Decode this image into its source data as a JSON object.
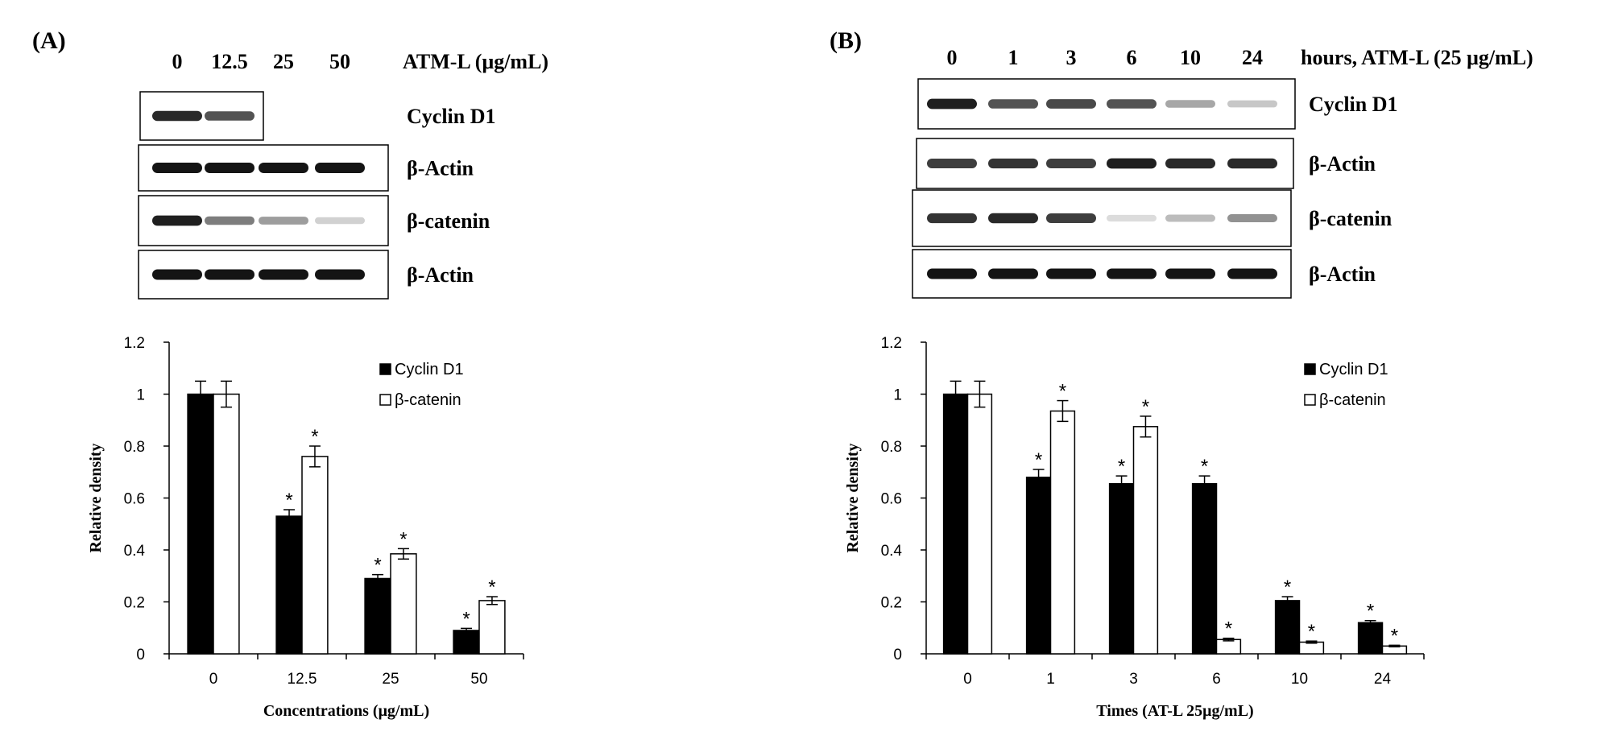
{
  "panels": [
    {
      "label": "(A)",
      "blot": {
        "lane_labels": [
          "0",
          "12.5",
          "25",
          "50"
        ],
        "treatment_label": "ATM-L (μg/mL)",
        "rows": [
          {
            "name": "Cyclin D1",
            "intensity": [
              0.9,
              0.7,
              0,
              0
            ]
          },
          {
            "name": "β-Actin",
            "intensity": [
              1,
              1,
              1,
              1
            ]
          },
          {
            "name": "β-catenin",
            "intensity": [
              0.95,
              0.5,
              0.35,
              0.1
            ]
          },
          {
            "name": "β-Actin",
            "intensity": [
              1,
              1,
              1,
              1
            ]
          }
        ]
      },
      "chart_data": {
        "type": "bar",
        "categories": [
          "0",
          "12.5",
          "25",
          "50"
        ],
        "series": [
          {
            "name": "Cyclin D1",
            "color": "#000000",
            "values": [
              1.0,
              0.53,
              0.29,
              0.09
            ],
            "errors": [
              0.05,
              0.025,
              0.015,
              0.008
            ],
            "significant": [
              false,
              true,
              true,
              true
            ]
          },
          {
            "name": "β-catenin",
            "color": "#ffffff",
            "values": [
              1.0,
              0.76,
              0.385,
              0.205
            ],
            "errors": [
              0.05,
              0.04,
              0.02,
              0.015
            ],
            "significant": [
              false,
              true,
              true,
              true
            ]
          }
        ],
        "significance_marker": "*",
        "yticks": [
          "0",
          "0.2",
          "0.4",
          "0.6",
          "0.8",
          "1",
          "1.2"
        ],
        "ylim": [
          0,
          1.2
        ],
        "ylabel": "Relative density",
        "xlabel": "Concentrations  (μg/mL)",
        "legend_position": "top-right"
      }
    },
    {
      "label": "(B)",
      "blot": {
        "lane_labels": [
          "0",
          "1",
          "3",
          "6",
          "10",
          "24"
        ],
        "treatment_label": "hours,  ATM-L (25 μg/mL)",
        "rows": [
          {
            "name": "Cyclin D1",
            "intensity": [
              0.95,
              0.7,
              0.75,
              0.7,
              0.3,
              0.15
            ]
          },
          {
            "name": "β-Actin",
            "intensity": [
              0.8,
              0.85,
              0.8,
              0.95,
              0.9,
              0.9
            ]
          },
          {
            "name": "β-catenin",
            "intensity": [
              0.85,
              0.9,
              0.8,
              0.05,
              0.2,
              0.4
            ]
          },
          {
            "name": "β-Actin",
            "intensity": [
              1,
              1,
              1,
              1,
              1,
              1
            ]
          }
        ]
      },
      "chart_data": {
        "type": "bar",
        "categories": [
          "0",
          "1",
          "3",
          "6",
          "10",
          "24"
        ],
        "series": [
          {
            "name": "Cyclin D1",
            "color": "#000000",
            "values": [
              1.0,
              0.68,
              0.655,
              0.655,
              0.205,
              0.12
            ],
            "errors": [
              0.05,
              0.03,
              0.03,
              0.03,
              0.015,
              0.008
            ],
            "significant": [
              false,
              true,
              true,
              true,
              true,
              true
            ]
          },
          {
            "name": "β-catenin",
            "color": "#ffffff",
            "values": [
              1.0,
              0.935,
              0.875,
              0.055,
              0.045,
              0.03
            ],
            "errors": [
              0.05,
              0.04,
              0.04,
              0.005,
              0.004,
              0.003
            ],
            "significant": [
              false,
              true,
              true,
              true,
              true,
              true
            ]
          }
        ],
        "significance_marker": "*",
        "yticks": [
          "0",
          "0.2",
          "0.4",
          "0.6",
          "0.8",
          "1",
          "1.2"
        ],
        "ylim": [
          0,
          1.2
        ],
        "ylabel": "Relative density",
        "xlabel": "Times (AT-L  25μg/mL)",
        "legend_position": "top-right"
      }
    }
  ]
}
